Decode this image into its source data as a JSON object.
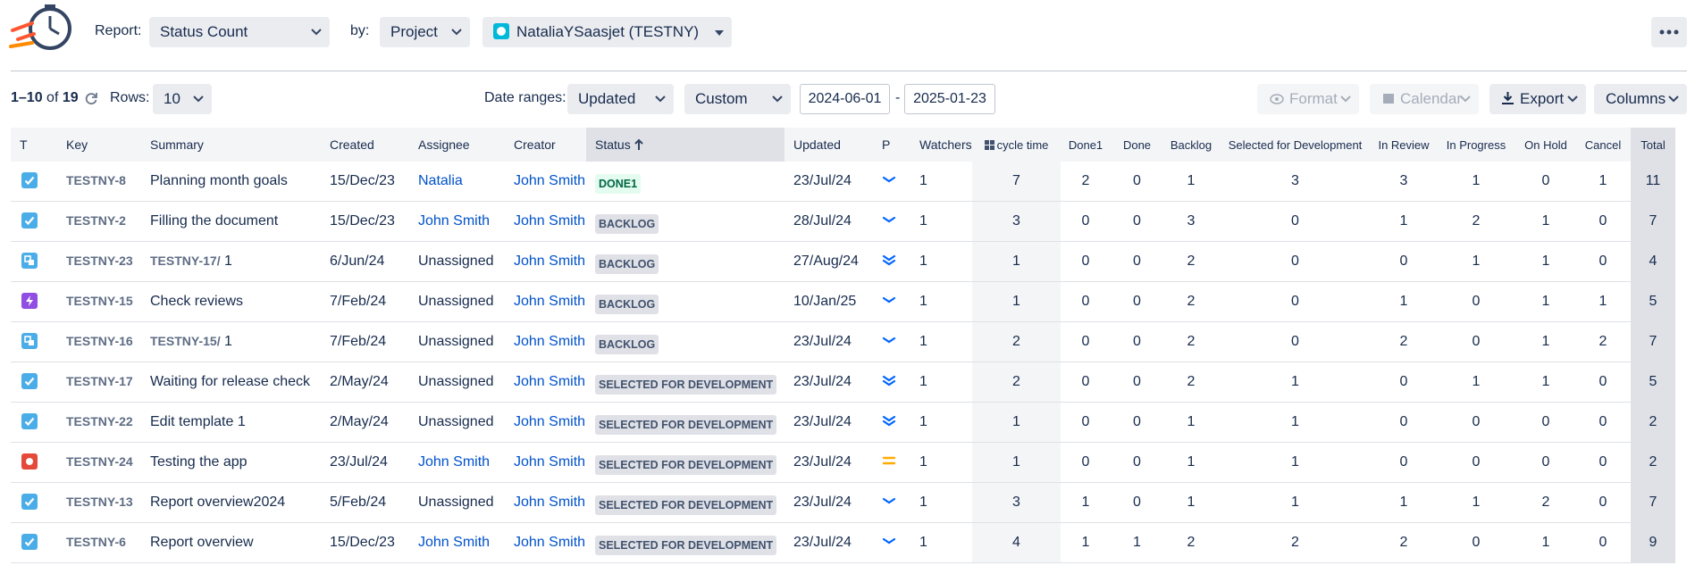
{
  "header": {
    "report_label": "Report:",
    "report": "Status Count",
    "by_label": "by:",
    "by": "Project",
    "project": "NataliaYSaasjet (TESTNY)"
  },
  "toolbar": {
    "range": "1–10",
    "of": "of",
    "total": "19",
    "rows_label": "Rows:",
    "rows": "10",
    "date_ranges_label": "Date ranges:",
    "date_field": "Updated",
    "date_mode": "Custom",
    "from": "2024-06-01",
    "dash": "-",
    "to": "2025-01-23",
    "format": "Format",
    "calendar": "Calendar",
    "export": "Export",
    "columns": "Columns"
  },
  "table": {
    "headers": [
      "T",
      "Key",
      "Summary",
      "Created",
      "Assignee",
      "Creator",
      "Status",
      "Updated",
      "P",
      "Watchers",
      "cycle time",
      "Done1",
      "Done",
      "Backlog",
      "Selected for Development",
      "In Review",
      "In Progress",
      "On Hold",
      "Cancel",
      "Total"
    ],
    "rows": [
      {
        "key": "TESTNY-8",
        "summary": "Planning month goals",
        "created": "15/Dec/23",
        "assignee": "Natalia",
        "creator": "John Smith",
        "status": "DONE1",
        "updated": "23/Jul/24",
        "watchers": 1,
        "cycle_time": 7,
        "done1": 2,
        "done": 0,
        "backlog": 1,
        "selected_for_development": 3,
        "in_review": 3,
        "in_progress": 1,
        "on_hold": 0,
        "cancel": 1,
        "total": 11
      },
      {
        "key": "TESTNY-2",
        "summary": "Filling the document",
        "created": "15/Dec/23",
        "assignee": "John Smith",
        "creator": "John Smith",
        "status": "BACKLOG",
        "updated": "28/Jul/24",
        "watchers": 1,
        "cycle_time": 3,
        "done1": 0,
        "done": 0,
        "backlog": 3,
        "selected_for_development": 0,
        "in_review": 1,
        "in_progress": 2,
        "on_hold": 1,
        "cancel": 0,
        "total": 7
      },
      {
        "key": "TESTNY-23",
        "parent": "TESTNY-17/",
        "summary": "1",
        "created": "6/Jun/24",
        "assignee": "Unassigned",
        "creator": "John Smith",
        "status": "BACKLOG",
        "updated": "27/Aug/24",
        "watchers": 1,
        "cycle_time": 1,
        "done1": 0,
        "done": 0,
        "backlog": 2,
        "selected_for_development": 0,
        "in_review": 0,
        "in_progress": 1,
        "on_hold": 1,
        "cancel": 0,
        "total": 4
      },
      {
        "key": "TESTNY-15",
        "summary": "Check reviews",
        "created": "7/Feb/24",
        "assignee": "Unassigned",
        "creator": "John Smith",
        "status": "BACKLOG",
        "updated": "10/Jan/25",
        "watchers": 1,
        "cycle_time": 1,
        "done1": 0,
        "done": 0,
        "backlog": 2,
        "selected_for_development": 0,
        "in_review": 1,
        "in_progress": 0,
        "on_hold": 1,
        "cancel": 1,
        "total": 5
      },
      {
        "key": "TESTNY-16",
        "parent": "TESTNY-15/",
        "summary": "1",
        "created": "7/Feb/24",
        "assignee": "Unassigned",
        "creator": "John Smith",
        "status": "BACKLOG",
        "updated": "23/Jul/24",
        "watchers": 1,
        "cycle_time": 2,
        "done1": 0,
        "done": 0,
        "backlog": 2,
        "selected_for_development": 0,
        "in_review": 2,
        "in_progress": 0,
        "on_hold": 1,
        "cancel": 2,
        "total": 7
      },
      {
        "key": "TESTNY-17",
        "summary": "Waiting for release check",
        "created": "2/May/24",
        "assignee": "Unassigned",
        "creator": "John Smith",
        "status": "SELECTED FOR DEVELOPMENT",
        "updated": "23/Jul/24",
        "watchers": 1,
        "cycle_time": 2,
        "done1": 0,
        "done": 0,
        "backlog": 2,
        "selected_for_development": 1,
        "in_review": 0,
        "in_progress": 1,
        "on_hold": 1,
        "cancel": 0,
        "total": 5
      },
      {
        "key": "TESTNY-22",
        "summary": "Edit template 1",
        "created": "2/May/24",
        "assignee": "Unassigned",
        "creator": "John Smith",
        "status": "SELECTED FOR DEVELOPMENT",
        "updated": "23/Jul/24",
        "watchers": 1,
        "cycle_time": 1,
        "done1": 0,
        "done": 0,
        "backlog": 1,
        "selected_for_development": 1,
        "in_review": 0,
        "in_progress": 0,
        "on_hold": 0,
        "cancel": 0,
        "total": 2
      },
      {
        "key": "TESTNY-24",
        "summary": "Testing the app",
        "created": "23/Jul/24",
        "assignee": "John Smith",
        "creator": "John Smith",
        "status": "SELECTED FOR DEVELOPMENT",
        "updated": "23/Jul/24",
        "watchers": 1,
        "cycle_time": 1,
        "done1": 0,
        "done": 0,
        "backlog": 1,
        "selected_for_development": 1,
        "in_review": 0,
        "in_progress": 0,
        "on_hold": 0,
        "cancel": 0,
        "total": 2
      },
      {
        "key": "TESTNY-13",
        "summary": "Report overview2024",
        "created": "5/Feb/24",
        "assignee": "Unassigned",
        "creator": "John Smith",
        "status": "SELECTED FOR DEVELOPMENT",
        "updated": "23/Jul/24",
        "watchers": 1,
        "cycle_time": 3,
        "done1": 1,
        "done": 0,
        "backlog": 1,
        "selected_for_development": 1,
        "in_review": 1,
        "in_progress": 1,
        "on_hold": 2,
        "cancel": 0,
        "total": 7
      },
      {
        "key": "TESTNY-6",
        "summary": "Report overview",
        "created": "15/Dec/23",
        "assignee": "John Smith",
        "creator": "John Smith",
        "status": "SELECTED FOR DEVELOPMENT",
        "updated": "23/Jul/24",
        "watchers": 1,
        "cycle_time": 4,
        "done1": 1,
        "done": 1,
        "backlog": 2,
        "selected_for_development": 2,
        "in_review": 2,
        "in_progress": 0,
        "on_hold": 1,
        "cancel": 0,
        "total": 9
      }
    ]
  }
}
